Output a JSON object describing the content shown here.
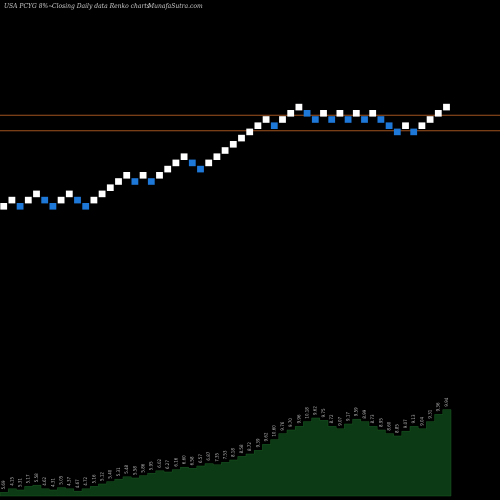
{
  "header": {
    "symbol": "USA PCYG 8%~",
    "description": "Closing Daily data Renko charts",
    "source": "MunafaSutra.com"
  },
  "colors": {
    "background": "#000000",
    "up_brick": "#ffffff",
    "down_brick": "#1e78d8",
    "reference_line": "#a0521e",
    "volume_fill": "#0c3a14"
  },
  "chart_data": {
    "type": "renko",
    "bricks": [
      {
        "i": 0,
        "level": 0,
        "dir": "up"
      },
      {
        "i": 1,
        "level": 1,
        "dir": "up"
      },
      {
        "i": 2,
        "level": 0,
        "dir": "down"
      },
      {
        "i": 3,
        "level": 1,
        "dir": "up"
      },
      {
        "i": 4,
        "level": 2,
        "dir": "up"
      },
      {
        "i": 5,
        "level": 1,
        "dir": "down"
      },
      {
        "i": 6,
        "level": 0,
        "dir": "down"
      },
      {
        "i": 7,
        "level": 1,
        "dir": "up"
      },
      {
        "i": 8,
        "level": 2,
        "dir": "up"
      },
      {
        "i": 9,
        "level": 1,
        "dir": "down"
      },
      {
        "i": 10,
        "level": 0,
        "dir": "down"
      },
      {
        "i": 11,
        "level": 1,
        "dir": "up"
      },
      {
        "i": 12,
        "level": 2,
        "dir": "up"
      },
      {
        "i": 13,
        "level": 3,
        "dir": "up"
      },
      {
        "i": 14,
        "level": 4,
        "dir": "up"
      },
      {
        "i": 15,
        "level": 5,
        "dir": "up"
      },
      {
        "i": 16,
        "level": 4,
        "dir": "down"
      },
      {
        "i": 17,
        "level": 5,
        "dir": "up"
      },
      {
        "i": 18,
        "level": 4,
        "dir": "down"
      },
      {
        "i": 19,
        "level": 5,
        "dir": "up"
      },
      {
        "i": 20,
        "level": 6,
        "dir": "up"
      },
      {
        "i": 21,
        "level": 7,
        "dir": "up"
      },
      {
        "i": 22,
        "level": 8,
        "dir": "up"
      },
      {
        "i": 23,
        "level": 7,
        "dir": "down"
      },
      {
        "i": 24,
        "level": 6,
        "dir": "down"
      },
      {
        "i": 25,
        "level": 7,
        "dir": "up"
      },
      {
        "i": 26,
        "level": 8,
        "dir": "up"
      },
      {
        "i": 27,
        "level": 9,
        "dir": "up"
      },
      {
        "i": 28,
        "level": 10,
        "dir": "up"
      },
      {
        "i": 29,
        "level": 11,
        "dir": "up"
      },
      {
        "i": 30,
        "level": 12,
        "dir": "up"
      },
      {
        "i": 31,
        "level": 13,
        "dir": "up"
      },
      {
        "i": 32,
        "level": 14,
        "dir": "up"
      },
      {
        "i": 33,
        "level": 13,
        "dir": "down"
      },
      {
        "i": 34,
        "level": 14,
        "dir": "up"
      },
      {
        "i": 35,
        "level": 15,
        "dir": "up"
      },
      {
        "i": 36,
        "level": 16,
        "dir": "up"
      },
      {
        "i": 37,
        "level": 15,
        "dir": "down"
      },
      {
        "i": 38,
        "level": 14,
        "dir": "down"
      },
      {
        "i": 39,
        "level": 15,
        "dir": "up"
      },
      {
        "i": 40,
        "level": 14,
        "dir": "down"
      },
      {
        "i": 41,
        "level": 15,
        "dir": "up"
      },
      {
        "i": 42,
        "level": 14,
        "dir": "down"
      },
      {
        "i": 43,
        "level": 15,
        "dir": "up"
      },
      {
        "i": 44,
        "level": 14,
        "dir": "down"
      },
      {
        "i": 45,
        "level": 15,
        "dir": "up"
      },
      {
        "i": 46,
        "level": 14,
        "dir": "down"
      },
      {
        "i": 47,
        "level": 13,
        "dir": "down"
      },
      {
        "i": 48,
        "level": 12,
        "dir": "down"
      },
      {
        "i": 49,
        "level": 13,
        "dir": "up"
      },
      {
        "i": 50,
        "level": 12,
        "dir": "down"
      },
      {
        "i": 51,
        "level": 13,
        "dir": "up"
      },
      {
        "i": 52,
        "level": 14,
        "dir": "up"
      },
      {
        "i": 53,
        "level": 15,
        "dir": "up"
      },
      {
        "i": 54,
        "level": 16,
        "dir": "up"
      }
    ],
    "reference_lines": [
      12.3,
      14.8
    ],
    "volume": [
      3,
      6,
      5,
      8,
      9,
      6,
      5,
      7,
      6,
      4,
      6,
      8,
      10,
      12,
      14,
      16,
      15,
      17,
      19,
      21,
      20,
      22,
      24,
      23,
      25,
      27,
      26,
      28,
      30,
      33,
      35,
      38,
      43,
      47,
      52,
      55,
      58,
      62,
      65,
      63,
      58,
      56,
      60,
      64,
      62,
      58,
      55,
      52,
      50,
      54,
      58,
      56,
      62,
      68,
      72
    ],
    "volume_labels": [
      "5.69",
      "4.15",
      "5.31",
      "5.17",
      "5.58",
      "4.62",
      "4.31",
      "5.05",
      "4.37",
      "4.67",
      "4.72",
      "5.16",
      "5.12",
      "5.40",
      "5.31",
      "5.48",
      "5.58",
      "5.86",
      "5.95",
      "6.02",
      "6.27",
      "6.16",
      "6.60",
      "6.58",
      "6.57",
      "6.87",
      "7.35",
      "7.53",
      "8.18",
      "8.58",
      "8.72",
      "9.39",
      "9.62",
      "10.60",
      "9.76",
      "9.70",
      "9.96",
      "10.18",
      "9.62",
      "9.75",
      "8.72",
      "9.07",
      "9.17",
      "9.59",
      "8.99",
      "8.73",
      "8.95",
      "8.60",
      "8.85",
      "9.07",
      "9.13",
      "9.04",
      "9.31",
      "9.36",
      "9.94"
    ]
  }
}
